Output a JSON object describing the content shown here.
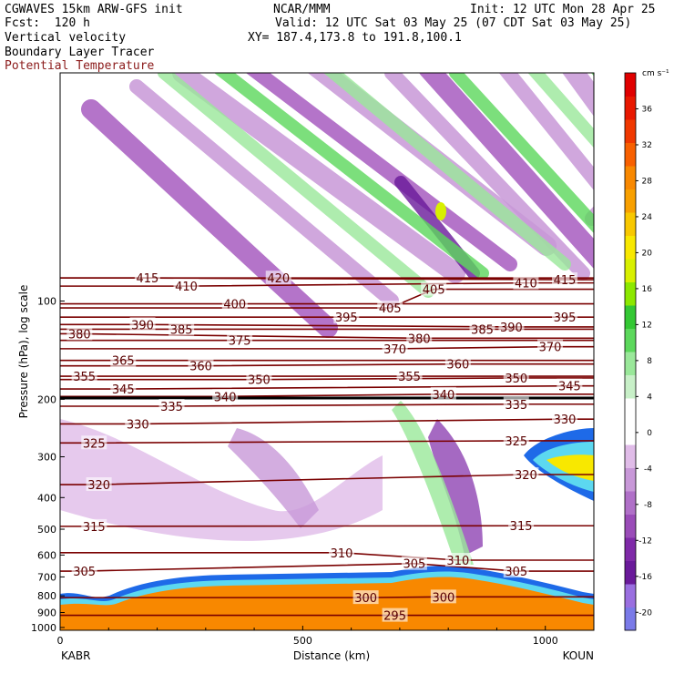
{
  "header": {
    "title": "CGWAVES 15km ARW-GFS init",
    "forecast": "Fcst:  120 h",
    "field1": "Vertical velocity",
    "field2": "Boundary Layer Tracer",
    "field3": "Potential Temperature",
    "center": "NCAR/MMM",
    "init": "Init: 12 UTC Mon 28 Apr 25",
    "valid": "Valid: 12 UTC Sat 03 May 25 (07 CDT Sat 03 May 25)",
    "xy": "XY= 187.4,173.8 to 191.8,100.1"
  },
  "chart_data": {
    "type": "heatmap",
    "xlabel": "Distance (km)",
    "ylabel": "Pressure (hPa), log scale",
    "x_ticks": [
      0,
      500,
      1000
    ],
    "xlim": [
      0,
      1100
    ],
    "y_ticks": [
      100,
      200,
      300,
      400,
      500,
      600,
      700,
      800,
      900,
      1000
    ],
    "ylim": [
      1020,
      20
    ],
    "y_scale": "log",
    "left_endpoint": "KABR",
    "right_endpoint": "KOUN",
    "colorbar": {
      "units": "cm s⁻¹",
      "ticks": [
        -20,
        -16,
        -12,
        -8,
        -4,
        0,
        4,
        8,
        12,
        16,
        20,
        24,
        28,
        32,
        36
      ],
      "colors": [
        "#7a7ae8",
        "#9a6fe0",
        "#6a1a9a",
        "#7f2aa8",
        "#9a4cb8",
        "#b070c8",
        "#c898d8",
        "#e0bce8",
        "#ffffff",
        "#ffffff",
        "#c8f0c8",
        "#9ae89a",
        "#5cd85c",
        "#34c834",
        "#8ce800",
        "#d8f000",
        "#f8e800",
        "#f8c800",
        "#f8a000",
        "#f88800",
        "#f86000",
        "#f03800",
        "#e81800",
        "#e00000"
      ]
    },
    "theta_contours": [
      {
        "label": "415",
        "x": 180,
        "p": 85
      },
      {
        "label": "410",
        "x": 260,
        "p": 90
      },
      {
        "label": "420",
        "x": 450,
        "p": 85
      },
      {
        "label": "405",
        "x": 770,
        "p": 92
      },
      {
        "label": "410",
        "x": 960,
        "p": 88
      },
      {
        "label": "415",
        "x": 1040,
        "p": 86
      },
      {
        "label": "400",
        "x": 360,
        "p": 102
      },
      {
        "label": "405",
        "x": 680,
        "p": 105
      },
      {
        "label": "395",
        "x": 590,
        "p": 112
      },
      {
        "label": "395",
        "x": 1040,
        "p": 112
      },
      {
        "label": "390",
        "x": 170,
        "p": 118
      },
      {
        "label": "385",
        "x": 250,
        "p": 122
      },
      {
        "label": "385",
        "x": 870,
        "p": 122
      },
      {
        "label": "390",
        "x": 930,
        "p": 120
      },
      {
        "label": "380",
        "x": 40,
        "p": 126
      },
      {
        "label": "375",
        "x": 370,
        "p": 132
      },
      {
        "label": "380",
        "x": 740,
        "p": 130
      },
      {
        "label": "370",
        "x": 690,
        "p": 140
      },
      {
        "label": "370",
        "x": 1010,
        "p": 138
      },
      {
        "label": "365",
        "x": 130,
        "p": 152
      },
      {
        "label": "360",
        "x": 290,
        "p": 158
      },
      {
        "label": "360",
        "x": 820,
        "p": 156
      },
      {
        "label": "355",
        "x": 50,
        "p": 170
      },
      {
        "label": "355",
        "x": 720,
        "p": 170
      },
      {
        "label": "350",
        "x": 410,
        "p": 174
      },
      {
        "label": "350",
        "x": 940,
        "p": 172
      },
      {
        "label": "345",
        "x": 130,
        "p": 186
      },
      {
        "label": "345",
        "x": 1050,
        "p": 182
      },
      {
        "label": "340",
        "x": 340,
        "p": 196
      },
      {
        "label": "340",
        "x": 790,
        "p": 193
      },
      {
        "label": "335",
        "x": 230,
        "p": 210
      },
      {
        "label": "335",
        "x": 940,
        "p": 207
      },
      {
        "label": "330",
        "x": 160,
        "p": 238
      },
      {
        "label": "330",
        "x": 1040,
        "p": 230
      },
      {
        "label": "325",
        "x": 70,
        "p": 272
      },
      {
        "label": "325",
        "x": 940,
        "p": 268
      },
      {
        "label": "320",
        "x": 80,
        "p": 365
      },
      {
        "label": "320",
        "x": 960,
        "p": 340
      },
      {
        "label": "315",
        "x": 70,
        "p": 490
      },
      {
        "label": "315",
        "x": 950,
        "p": 488
      },
      {
        "label": "310",
        "x": 580,
        "p": 590
      },
      {
        "label": "310",
        "x": 820,
        "p": 622
      },
      {
        "label": "305",
        "x": 50,
        "p": 672
      },
      {
        "label": "305",
        "x": 730,
        "p": 637
      },
      {
        "label": "305",
        "x": 940,
        "p": 672
      },
      {
        "label": "300",
        "x": 630,
        "p": 810
      },
      {
        "label": "300",
        "x": 790,
        "p": 806
      },
      {
        "label": "295",
        "x": 690,
        "p": 918
      }
    ]
  }
}
